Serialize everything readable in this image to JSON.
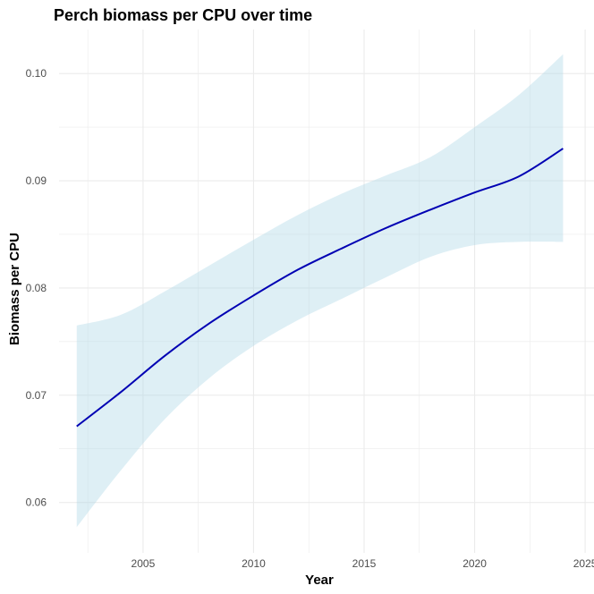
{
  "chart_data": {
    "type": "line",
    "title": "Perch biomass per CPU over time",
    "xlabel": "Year",
    "ylabel": "Biomass per CPU",
    "xlim": [
      2001.2,
      2025.4
    ],
    "ylim": [
      0.0553,
      0.1041
    ],
    "x_ticks": [
      2005,
      2010,
      2015,
      2020,
      2025
    ],
    "x_tick_labels": [
      "2005",
      "2010",
      "2015",
      "2020",
      "2025"
    ],
    "y_ticks": [
      0.06,
      0.07,
      0.08,
      0.09,
      0.1
    ],
    "y_tick_labels": [
      "0.06",
      "0.07",
      "0.08",
      "0.09",
      "0.10"
    ],
    "grid": true,
    "legend": "none",
    "colors": {
      "line": "#0000b3",
      "ribbon": "#add8e6",
      "grid": "#ebebeb"
    },
    "series": [
      {
        "x": [
          2002,
          2004,
          2006,
          2008,
          2010,
          2012,
          2014,
          2016,
          2018,
          2020,
          2022,
          2024
        ],
        "y": [
          0.0671,
          0.0703,
          0.0737,
          0.0767,
          0.0793,
          0.0817,
          0.0837,
          0.0856,
          0.0873,
          0.0889,
          0.0904,
          0.093
        ],
        "lower": [
          0.0577,
          0.063,
          0.0678,
          0.0716,
          0.0746,
          0.077,
          0.079,
          0.081,
          0.0829,
          0.084,
          0.0843,
          0.0843
        ],
        "upper": [
          0.0765,
          0.0775,
          0.0797,
          0.0821,
          0.0845,
          0.0868,
          0.0888,
          0.0905,
          0.0922,
          0.095,
          0.098,
          0.1018
        ]
      }
    ]
  }
}
